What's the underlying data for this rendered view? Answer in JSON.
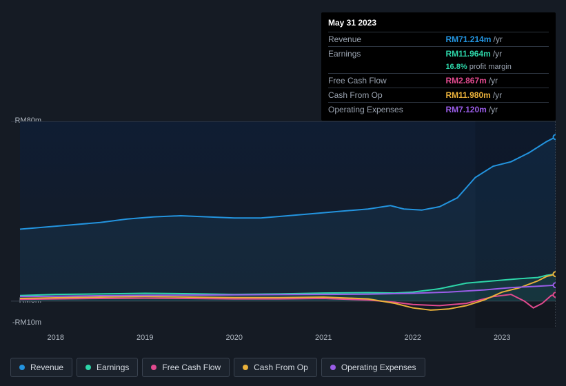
{
  "tooltip": {
    "date": "May 31 2023",
    "rows": [
      {
        "label": "Revenue",
        "value": "RM71.214m",
        "unit": "/yr",
        "color": "#2394df"
      },
      {
        "label": "Earnings",
        "value": "RM11.964m",
        "unit": "/yr",
        "color": "#2dd6a9",
        "sub_pct": "16.8%",
        "sub_text": "profit margin"
      },
      {
        "label": "Free Cash Flow",
        "value": "RM2.867m",
        "unit": "/yr",
        "color": "#e24a8f"
      },
      {
        "label": "Cash From Op",
        "value": "RM11.980m",
        "unit": "/yr",
        "color": "#eab13a"
      },
      {
        "label": "Operating Expenses",
        "value": "RM7.120m",
        "unit": "/yr",
        "color": "#9a5de8"
      }
    ]
  },
  "chart": {
    "type": "line",
    "background_color": "#151b24",
    "plot_gradient_top": "#0f1d33",
    "plot_gradient_bottom": "#151b24",
    "grid_color": "#3a4350",
    "text_color": "#b0b8c2",
    "ylim": [
      -12,
      80
    ],
    "xlim": [
      2017.5,
      2023.6
    ],
    "yticks": [
      {
        "v": 80,
        "label": "RM80m"
      },
      {
        "v": 0,
        "label": "RM0m"
      },
      {
        "v": -10,
        "label": "-RM10m"
      }
    ],
    "xticks": [
      {
        "v": 2018,
        "label": "2018"
      },
      {
        "v": 2019,
        "label": "2019"
      },
      {
        "v": 2020,
        "label": "2020"
      },
      {
        "v": 2021,
        "label": "2021"
      },
      {
        "v": 2022,
        "label": "2022"
      },
      {
        "v": 2023,
        "label": "2023"
      }
    ],
    "cursor_x": 2023.6,
    "series": [
      {
        "name": "Revenue",
        "color": "#2394df",
        "area": true,
        "points": [
          [
            2017.6,
            32
          ],
          [
            2017.9,
            33
          ],
          [
            2018.2,
            34
          ],
          [
            2018.5,
            35
          ],
          [
            2018.8,
            36.5
          ],
          [
            2019.1,
            37.5
          ],
          [
            2019.4,
            38
          ],
          [
            2019.7,
            37.5
          ],
          [
            2020.0,
            37
          ],
          [
            2020.3,
            37
          ],
          [
            2020.6,
            38
          ],
          [
            2020.9,
            39
          ],
          [
            2021.2,
            40
          ],
          [
            2021.5,
            41
          ],
          [
            2021.75,
            42.5
          ],
          [
            2021.9,
            41
          ],
          [
            2022.1,
            40.5
          ],
          [
            2022.3,
            42
          ],
          [
            2022.5,
            46
          ],
          [
            2022.7,
            55
          ],
          [
            2022.9,
            60
          ],
          [
            2023.1,
            62
          ],
          [
            2023.3,
            66
          ],
          [
            2023.5,
            71
          ],
          [
            2023.6,
            73
          ]
        ]
      },
      {
        "name": "Earnings",
        "color": "#2dd6a9",
        "area": true,
        "points": [
          [
            2017.6,
            2.5
          ],
          [
            2018.0,
            3
          ],
          [
            2018.5,
            3.2
          ],
          [
            2019.0,
            3.5
          ],
          [
            2019.5,
            3.3
          ],
          [
            2020.0,
            3.0
          ],
          [
            2020.5,
            3.2
          ],
          [
            2021.0,
            3.6
          ],
          [
            2021.5,
            3.8
          ],
          [
            2021.8,
            3.6
          ],
          [
            2022.0,
            4.0
          ],
          [
            2022.3,
            5.5
          ],
          [
            2022.6,
            8.0
          ],
          [
            2022.9,
            9.0
          ],
          [
            2023.2,
            10.0
          ],
          [
            2023.4,
            10.5
          ],
          [
            2023.5,
            11.5
          ],
          [
            2023.6,
            12.0
          ]
        ]
      },
      {
        "name": "Free Cash Flow",
        "color": "#e24a8f",
        "area": false,
        "points": [
          [
            2017.6,
            0.8
          ],
          [
            2018.0,
            1.0
          ],
          [
            2018.5,
            1.2
          ],
          [
            2019.0,
            1.3
          ],
          [
            2019.5,
            1.2
          ],
          [
            2020.0,
            1.0
          ],
          [
            2020.5,
            1.0
          ],
          [
            2021.0,
            1.2
          ],
          [
            2021.5,
            0.5
          ],
          [
            2021.8,
            -0.5
          ],
          [
            2022.0,
            -1.5
          ],
          [
            2022.3,
            -2.0
          ],
          [
            2022.6,
            -1.0
          ],
          [
            2022.9,
            2.0
          ],
          [
            2023.1,
            3
          ],
          [
            2023.25,
            0
          ],
          [
            2023.35,
            -3
          ],
          [
            2023.45,
            -1
          ],
          [
            2023.55,
            2.5
          ],
          [
            2023.6,
            2.8
          ]
        ]
      },
      {
        "name": "Cash From Op",
        "color": "#eab13a",
        "area": false,
        "points": [
          [
            2017.6,
            1.2
          ],
          [
            2018.0,
            1.5
          ],
          [
            2018.5,
            1.8
          ],
          [
            2019.0,
            2.0
          ],
          [
            2019.5,
            1.8
          ],
          [
            2020.0,
            1.6
          ],
          [
            2020.5,
            1.6
          ],
          [
            2021.0,
            1.8
          ],
          [
            2021.5,
            1.0
          ],
          [
            2021.8,
            -1.0
          ],
          [
            2022.0,
            -3.0
          ],
          [
            2022.2,
            -4.0
          ],
          [
            2022.4,
            -3.5
          ],
          [
            2022.6,
            -2.0
          ],
          [
            2022.8,
            0.5
          ],
          [
            2023.0,
            4.0
          ],
          [
            2023.2,
            6.0
          ],
          [
            2023.4,
            9.0
          ],
          [
            2023.5,
            11.0
          ],
          [
            2023.6,
            12.0
          ]
        ]
      },
      {
        "name": "Operating Expenses",
        "color": "#9a5de8",
        "area": false,
        "points": [
          [
            2017.6,
            2.0
          ],
          [
            2018.0,
            2.2
          ],
          [
            2018.5,
            2.4
          ],
          [
            2019.0,
            2.6
          ],
          [
            2019.5,
            2.7
          ],
          [
            2020.0,
            2.8
          ],
          [
            2020.5,
            2.9
          ],
          [
            2021.0,
            3.0
          ],
          [
            2021.5,
            3.1
          ],
          [
            2022.0,
            3.5
          ],
          [
            2022.4,
            4.0
          ],
          [
            2022.8,
            5.0
          ],
          [
            2023.1,
            6.0
          ],
          [
            2023.4,
            6.6
          ],
          [
            2023.6,
            7.1
          ]
        ]
      }
    ],
    "legend": [
      {
        "label": "Revenue",
        "color": "#2394df"
      },
      {
        "label": "Earnings",
        "color": "#2dd6a9"
      },
      {
        "label": "Free Cash Flow",
        "color": "#e24a8f"
      },
      {
        "label": "Cash From Op",
        "color": "#eab13a"
      },
      {
        "label": "Operating Expenses",
        "color": "#9a5de8"
      }
    ]
  }
}
